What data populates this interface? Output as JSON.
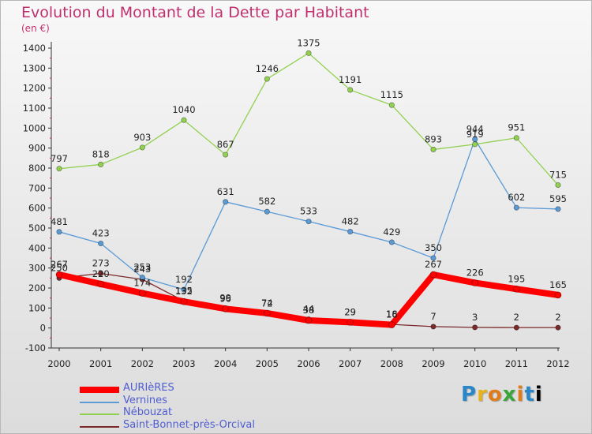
{
  "chart_data": {
    "type": "line",
    "title": "Evolution du Montant de la Dette par Habitant",
    "subtitle": "(en €)",
    "x": [
      "2000",
      "2001",
      "2002",
      "2003",
      "2004",
      "2005",
      "2006",
      "2007",
      "2008",
      "2009",
      "2010",
      "2011",
      "2012"
    ],
    "ylim": [
      -100,
      1400
    ],
    "yticks": [
      -100,
      0,
      100,
      200,
      300,
      400,
      500,
      600,
      700,
      800,
      900,
      1000,
      1100,
      1200,
      1300,
      1400
    ],
    "grid": false,
    "legend_position": "bottom-left",
    "series": [
      {
        "name": "AURIèRES",
        "color": "#ff0000",
        "values": [
          267,
          220,
          174,
          132,
          96,
          74,
          38,
          29,
          16,
          267,
          226,
          195,
          165
        ]
      },
      {
        "name": "Vernines",
        "color": "#5b9ad5",
        "values": [
          481,
          423,
          253,
          192,
          631,
          582,
          533,
          482,
          429,
          350,
          944,
          602,
          595
        ]
      },
      {
        "name": "Nébouzat",
        "color": "#92d050",
        "values": [
          797,
          818,
          903,
          1040,
          867,
          1246,
          1375,
          1191,
          1115,
          893,
          919,
          951,
          715
        ]
      },
      {
        "name": "Saint-Bonnet-près-Orcival",
        "color": "#7a2a2a",
        "values": [
          250,
          273,
          243,
          135,
          99,
          72,
          44,
          29,
          18,
          7,
          3,
          2,
          2
        ]
      }
    ]
  },
  "logo": {
    "letters": [
      "P",
      "r",
      "o",
      "x",
      "i",
      "t",
      "i"
    ]
  }
}
